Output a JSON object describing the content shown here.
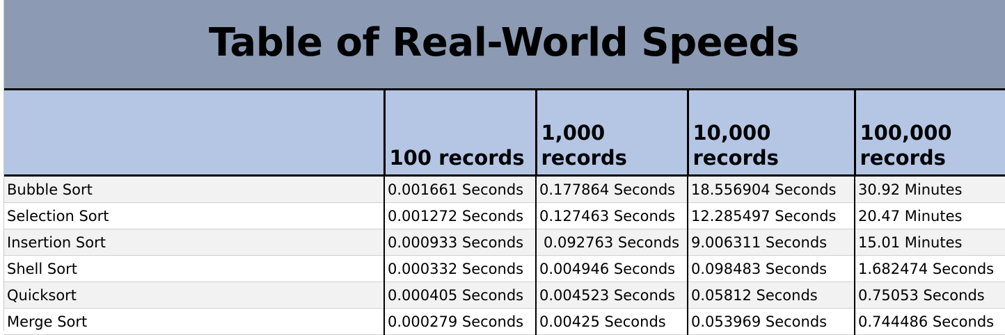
{
  "title": "Table of Real-World Speeds",
  "colors": {
    "title_bg": "#8c9bb3",
    "header_bg": "#b4c6e4",
    "row_alt_bg": "#f2f2f2",
    "border": "#000000"
  },
  "columns": [
    "100 records",
    "1,000 records",
    "10,000 records",
    "100,000 records"
  ],
  "rows": [
    {
      "algorithm": "Bubble Sort",
      "values": [
        "0.001661 Seconds",
        "0.177864 Seconds",
        "18.556904 Seconds",
        "30.92 Minutes"
      ]
    },
    {
      "algorithm": "Selection Sort",
      "values": [
        "0.001272 Seconds",
        "0.127463 Seconds",
        "12.285497 Seconds",
        "20.47 Minutes"
      ]
    },
    {
      "algorithm": "Insertion Sort",
      "values": [
        "0.000933 Seconds",
        "0.092763 Seconds",
        "9.006311 Seconds",
        "15.01 Minutes"
      ]
    },
    {
      "algorithm": "Shell Sort",
      "values": [
        "0.000332 Seconds",
        "0.004946 Seconds",
        "0.098483 Seconds",
        "1.682474 Seconds"
      ]
    },
    {
      "algorithm": "Quicksort",
      "values": [
        "0.000405 Seconds",
        "0.004523 Seconds",
        "0.05812 Seconds",
        "0.75053 Seconds"
      ]
    },
    {
      "algorithm": "Merge Sort",
      "values": [
        "0.000279 Seconds",
        "0.00425 Seconds",
        "0.053969 Seconds",
        "0.744486 Seconds"
      ]
    }
  ]
}
